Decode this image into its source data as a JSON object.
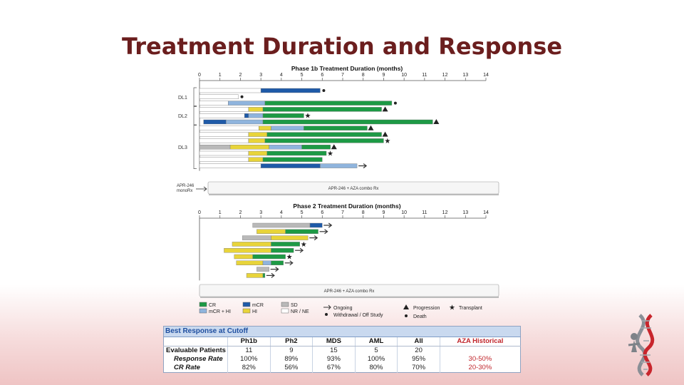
{
  "slide": {
    "title": "Treatment Duration and Response"
  },
  "chart_data": [
    {
      "type": "swimmer",
      "title": "Phase 1b Treatment Duration (months)",
      "xlim": [
        0,
        14
      ],
      "x_ticks": [
        "0",
        "1",
        "2",
        "3",
        "4",
        "5",
        "6",
        "7",
        "8",
        "9",
        "10",
        "11",
        "12",
        "13",
        "14"
      ],
      "groups": [
        {
          "label": "DL1",
          "rows": [
            0,
            1,
            2
          ]
        },
        {
          "label": "DL2",
          "rows": [
            3,
            4,
            5
          ]
        },
        {
          "label": "DL3",
          "rows": [
            6,
            7,
            8,
            9,
            10,
            11,
            12
          ]
        }
      ],
      "rows": [
        {
          "segments": [
            [
              "Blank",
              0,
              3.0
            ],
            [
              "mCR",
              3.0,
              5.9
            ]
          ],
          "marker": "withdrawal"
        },
        {
          "segments": [
            [
              "NR / NE",
              0,
              1.9
            ]
          ],
          "marker": "withdrawal"
        },
        {
          "segments": [
            [
              "Blank",
              0,
              1.4
            ],
            [
              "mCR + HI",
              1.4,
              3.2
            ],
            [
              "CR",
              3.2,
              9.4
            ]
          ],
          "marker": "death"
        },
        {
          "segments": [
            [
              "Blank",
              0,
              2.4
            ],
            [
              "HI",
              2.4,
              3.1
            ],
            [
              "CR",
              3.1,
              8.9
            ]
          ],
          "marker": "progression"
        },
        {
          "segments": [
            [
              "Blank",
              0,
              2.2
            ],
            [
              "mCR",
              2.2,
              2.4
            ],
            [
              "mCR + HI",
              2.4,
              3.1
            ],
            [
              "CR",
              3.1,
              5.1
            ]
          ],
          "marker": "transplant"
        },
        {
          "segments": [
            [
              "mCR",
              0.2,
              1.3
            ],
            [
              "mCR + HI",
              1.3,
              3.1
            ],
            [
              "CR",
              3.1,
              11.4
            ]
          ],
          "marker": "progression"
        },
        {
          "segments": [
            [
              "Blank",
              0,
              2.9
            ],
            [
              "HI",
              2.9,
              3.5
            ],
            [
              "mCR + HI",
              3.5,
              5.1
            ],
            [
              "CR",
              5.1,
              8.2
            ]
          ],
          "marker": "progression"
        },
        {
          "segments": [
            [
              "Blank",
              0,
              2.4
            ],
            [
              "HI",
              2.4,
              3.3
            ],
            [
              "CR",
              3.3,
              8.9
            ]
          ],
          "marker": "progression"
        },
        {
          "segments": [
            [
              "Blank",
              0,
              2.4
            ],
            [
              "HI",
              2.4,
              3.2
            ],
            [
              "CR",
              3.2,
              9.0
            ]
          ],
          "marker": "transplant"
        },
        {
          "segments": [
            [
              "SD",
              0,
              1.5
            ],
            [
              "HI",
              1.5,
              3.4
            ],
            [
              "mCR + HI",
              3.4,
              5.0
            ],
            [
              "CR",
              5.0,
              6.4
            ]
          ],
          "marker": "progression"
        },
        {
          "segments": [
            [
              "Blank",
              0,
              2.4
            ],
            [
              "HI",
              2.4,
              3.3
            ],
            [
              "CR",
              3.3,
              6.2
            ]
          ],
          "marker": "transplant"
        },
        {
          "segments": [
            [
              "Blank",
              0,
              2.4
            ],
            [
              "HI",
              2.4,
              3.1
            ],
            [
              "CR",
              3.1,
              6.0
            ]
          ],
          "marker": "none"
        },
        {
          "segments": [
            [
              "Blank",
              0,
              3.0
            ],
            [
              "mCR",
              3.0,
              5.9
            ],
            [
              "mCR + HI",
              5.9,
              7.7
            ]
          ],
          "marker": "ongoing"
        }
      ],
      "bracket_label": "APR-246 monoRx",
      "footer_label": "APR-246 + AZA combo Rx"
    },
    {
      "type": "swimmer",
      "title": "Phase 2 Treatment Duration (months)",
      "xlim": [
        0,
        14
      ],
      "x_ticks": [
        "0",
        "1",
        "2",
        "3",
        "4",
        "5",
        "6",
        "7",
        "8",
        "9",
        "10",
        "11",
        "12",
        "13",
        "14"
      ],
      "rows": [
        {
          "segments": [
            [
              "SD",
              2.6,
              5.4
            ],
            [
              "mCR",
              5.4,
              6.0
            ]
          ],
          "marker": "ongoing"
        },
        {
          "segments": [
            [
              "HI",
              2.8,
              4.2
            ],
            [
              "CR",
              4.2,
              5.8
            ]
          ],
          "marker": "ongoing"
        },
        {
          "segments": [
            [
              "SD",
              2.1,
              3.5
            ],
            [
              "HI",
              3.5,
              5.3
            ]
          ],
          "marker": "ongoing"
        },
        {
          "segments": [
            [
              "HI",
              1.6,
              3.5
            ],
            [
              "CR",
              3.5,
              4.9
            ]
          ],
          "marker": "transplant"
        },
        {
          "segments": [
            [
              "HI",
              1.2,
              3.5
            ],
            [
              "CR",
              3.5,
              4.6
            ]
          ],
          "marker": "ongoing"
        },
        {
          "segments": [
            [
              "HI",
              1.7,
              2.6
            ],
            [
              "CR",
              2.6,
              4.2
            ]
          ],
          "marker": "transplant"
        },
        {
          "segments": [
            [
              "HI",
              1.8,
              3.1
            ],
            [
              "mCR + HI",
              3.1,
              3.5
            ],
            [
              "CR",
              3.5,
              4.1
            ]
          ],
          "marker": "ongoing"
        },
        {
          "segments": [
            [
              "SD",
              2.8,
              3.4
            ]
          ],
          "marker": "ongoing"
        },
        {
          "segments": [
            [
              "HI",
              2.3,
              3.1
            ],
            [
              "CR",
              3.1,
              3.2
            ]
          ],
          "marker": "ongoing"
        }
      ],
      "footer_label": "APR-246 + AZA combo Rx"
    }
  ],
  "legend": {
    "items": [
      {
        "label": "CR",
        "color": "#1d9a45"
      },
      {
        "label": "mCR + HI",
        "color": "#8fb4dd"
      },
      {
        "label": "mCR",
        "color": "#1e5aa8"
      },
      {
        "label": "HI",
        "color": "#e8d43a"
      },
      {
        "label": "SD",
        "color": "#b9b9b9"
      },
      {
        "label": "NR / NE",
        "color": "#ffffff"
      }
    ],
    "markers": [
      {
        "label": "Ongoing",
        "symbol": "arrow"
      },
      {
        "label": "Withdrawal / Off Study",
        "symbol": "dot"
      },
      {
        "label": "Progression",
        "symbol": "triangle"
      },
      {
        "label": "Death",
        "symbol": "dot"
      },
      {
        "label": "Transplant",
        "symbol": "star"
      }
    ]
  },
  "table": {
    "caption": "Best Response at Cutoff",
    "columns": [
      "",
      "Ph1b",
      "Ph2",
      "MDS",
      "AML",
      "All",
      "AZA Historical"
    ],
    "rows": [
      {
        "label": "Evaluable Patients",
        "values": [
          "11",
          "9",
          "15",
          "5",
          "20",
          ""
        ]
      },
      {
        "label": "Response Rate",
        "values": [
          "100%",
          "89%",
          "93%",
          "100%",
          "95%",
          "30-50%"
        ]
      },
      {
        "label": "CR Rate",
        "values": [
          "82%",
          "56%",
          "67%",
          "80%",
          "70%",
          "20-30%"
        ]
      }
    ]
  },
  "colors": {
    "title": "#6b1e1e",
    "table_header": "#1f4fa0",
    "historical": "#c0262c"
  },
  "logo": {
    "icon": "dna-icon"
  }
}
